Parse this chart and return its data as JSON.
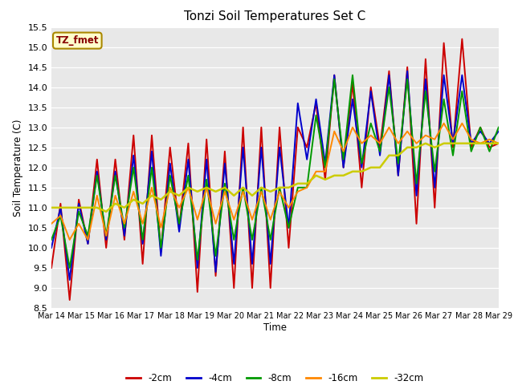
{
  "title": "Tonzi Soil Temperatures Set C",
  "xlabel": "Time",
  "ylabel": "Soil Temperature (C)",
  "ylim": [
    8.5,
    15.5
  ],
  "annotation_text": "TZ_fmet",
  "annotation_bg": "#ffffcc",
  "annotation_border": "#aa8800",
  "annotation_text_color": "#880000",
  "xtick_labels": [
    "Mar 14",
    "Mar 15",
    "Mar 16",
    "Mar 17",
    "Mar 18",
    "Mar 19",
    "Mar 20",
    "Mar 21",
    "Mar 22",
    "Mar 23",
    "Mar 24",
    "Mar 25",
    "Mar 26",
    "Mar 27",
    "Mar 28",
    "Mar 29"
  ],
  "ytick_vals": [
    8.5,
    9.0,
    9.5,
    10.0,
    10.5,
    11.0,
    11.5,
    12.0,
    12.5,
    13.0,
    13.5,
    14.0,
    14.5,
    15.0,
    15.5
  ],
  "series": {
    "-2cm": {
      "color": "#cc0000",
      "lw": 1.4,
      "data": [
        9.5,
        11.1,
        8.7,
        11.2,
        10.1,
        12.2,
        10.0,
        12.2,
        10.2,
        12.8,
        9.6,
        12.8,
        9.9,
        12.5,
        10.5,
        12.6,
        8.9,
        12.7,
        9.3,
        12.4,
        9.0,
        13.0,
        9.0,
        13.0,
        9.0,
        13.0,
        10.0,
        13.0,
        12.5,
        13.6,
        11.7,
        14.3,
        12.0,
        14.1,
        11.5,
        14.0,
        12.5,
        14.4,
        11.8,
        14.5,
        10.6,
        14.7,
        11.0,
        15.1,
        12.5,
        15.2,
        12.5,
        13.0,
        12.5,
        12.6
      ]
    },
    "-4cm": {
      "color": "#0000cc",
      "lw": 1.4,
      "data": [
        10.0,
        11.0,
        9.2,
        11.1,
        10.1,
        11.9,
        10.2,
        11.9,
        10.3,
        12.3,
        10.1,
        12.4,
        9.8,
        12.1,
        10.4,
        12.2,
        9.5,
        12.2,
        9.4,
        12.1,
        9.6,
        12.5,
        9.6,
        12.5,
        9.6,
        12.5,
        10.5,
        13.6,
        12.2,
        13.7,
        12.1,
        14.3,
        12.0,
        13.7,
        12.0,
        13.9,
        12.3,
        14.3,
        11.8,
        14.4,
        11.3,
        14.2,
        11.5,
        14.3,
        12.6,
        14.3,
        12.6,
        12.9,
        12.6,
        12.9
      ]
    },
    "-8cm": {
      "color": "#009900",
      "lw": 1.4,
      "data": [
        10.2,
        10.8,
        9.5,
        10.9,
        10.3,
        11.8,
        10.3,
        11.8,
        10.5,
        12.0,
        10.2,
        12.0,
        10.0,
        11.8,
        10.6,
        11.8,
        9.7,
        11.7,
        9.8,
        11.6,
        10.2,
        11.5,
        10.2,
        11.5,
        10.2,
        11.5,
        10.5,
        11.5,
        11.5,
        13.3,
        12.0,
        14.2,
        12.2,
        14.3,
        12.1,
        13.1,
        12.4,
        14.0,
        12.1,
        14.2,
        11.6,
        13.9,
        11.9,
        13.7,
        12.3,
        13.9,
        12.4,
        13.0,
        12.4,
        13.0
      ]
    },
    "-16cm": {
      "color": "#ff8800",
      "lw": 1.4,
      "data": [
        10.6,
        10.8,
        10.2,
        10.6,
        10.2,
        11.3,
        10.3,
        11.3,
        10.6,
        11.4,
        10.6,
        11.5,
        10.5,
        11.5,
        11.0,
        11.5,
        10.7,
        11.5,
        10.6,
        11.4,
        10.7,
        11.4,
        10.7,
        11.4,
        10.7,
        11.4,
        11.0,
        11.4,
        11.5,
        11.9,
        11.9,
        12.9,
        12.4,
        13.0,
        12.6,
        12.8,
        12.6,
        13.0,
        12.6,
        12.9,
        12.6,
        12.8,
        12.7,
        13.1,
        12.7,
        13.1,
        12.7,
        12.6,
        12.7,
        12.6
      ]
    },
    "-32cm": {
      "color": "#cccc00",
      "lw": 1.8,
      "data": [
        11.0,
        11.0,
        11.0,
        11.0,
        11.0,
        11.0,
        10.9,
        11.1,
        11.0,
        11.2,
        11.1,
        11.3,
        11.2,
        11.4,
        11.3,
        11.5,
        11.4,
        11.5,
        11.4,
        11.5,
        11.3,
        11.5,
        11.3,
        11.5,
        11.4,
        11.5,
        11.5,
        11.6,
        11.6,
        11.8,
        11.7,
        11.8,
        11.8,
        11.9,
        11.9,
        12.0,
        12.0,
        12.3,
        12.3,
        12.5,
        12.5,
        12.6,
        12.5,
        12.6,
        12.6,
        12.6,
        12.6,
        12.6,
        12.6,
        12.6
      ]
    }
  }
}
